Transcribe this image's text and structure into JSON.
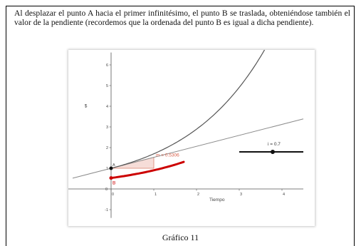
{
  "paragraph": "Al desplazar el punto A hacia el primer infinitésimo, el punto B se traslada, obteniéndose también el valor de la pendiente (recordemos que la ordenada del punto B es igual a dicha pendiente).",
  "caption": "Gráfico 11",
  "colors": {
    "curve": "#555555",
    "tangent": "#8c8c8c",
    "derivative": "#cc0000",
    "triangle_fill": "#f6ddd8",
    "triangle_stroke": "#d9826e",
    "slider": "#111111"
  },
  "chart_data": {
    "type": "line",
    "xlabel": "Tiempo",
    "ylabel": "$",
    "xlim": [
      -1,
      4.5
    ],
    "ylim": [
      -1.4,
      6.6
    ],
    "x_ticks": [
      "0",
      "1",
      "2",
      "3",
      "4"
    ],
    "y_ticks": [
      "-1",
      "0",
      "1",
      "2",
      "3",
      "4",
      "5",
      "6"
    ],
    "grid": false,
    "points": [
      {
        "name": "A",
        "x": 0,
        "y": 1
      },
      {
        "name": "B",
        "x": 0,
        "y": 0.5306
      }
    ],
    "slope_label": "m = 0.5306",
    "slider_label": "i = 0.7"
  }
}
